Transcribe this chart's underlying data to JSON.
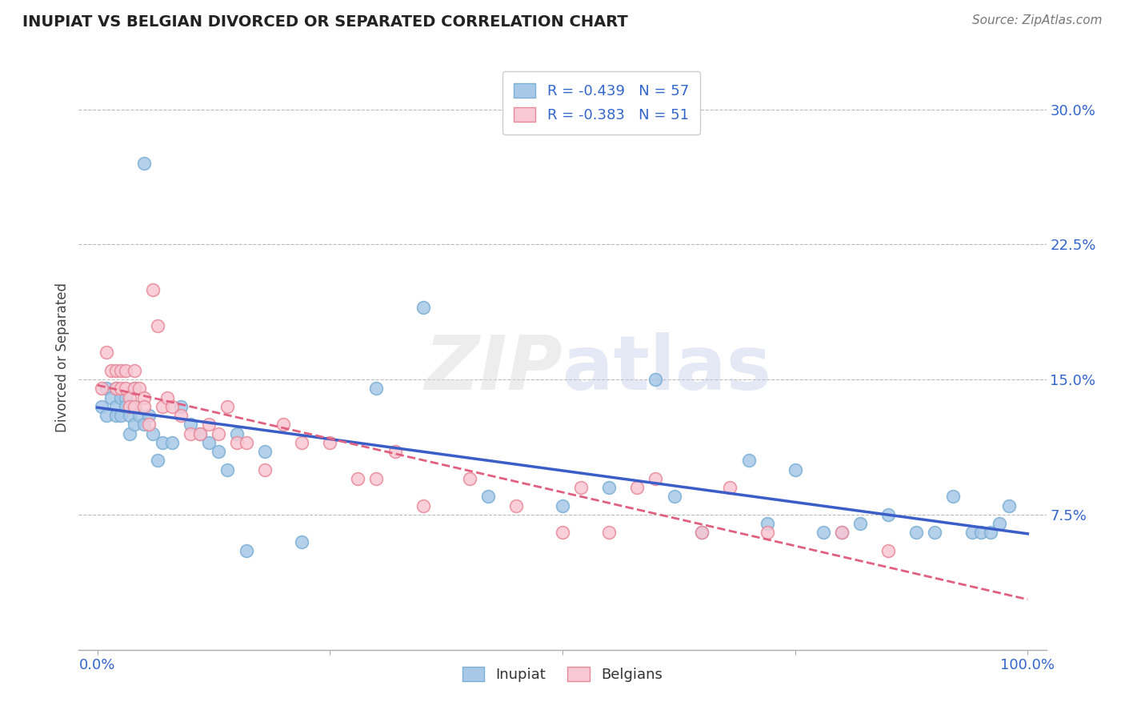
{
  "title": "INUPIAT VS BELGIAN DIVORCED OR SEPARATED CORRELATION CHART",
  "source": "Source: ZipAtlas.com",
  "ylabel": "Divorced or Separated",
  "xlim": [
    -0.02,
    1.02
  ],
  "ylim": [
    0.0,
    0.325
  ],
  "yticks": [
    0.075,
    0.15,
    0.225,
    0.3
  ],
  "ytick_labels": [
    "7.5%",
    "15.0%",
    "22.5%",
    "30.0%"
  ],
  "grid_color": "#bbbbbb",
  "background_color": "#ffffff",
  "inupiat_color": "#a8c8e8",
  "inupiat_edge_color": "#7bafd4",
  "belgian_color": "#f8c8d4",
  "belgian_edge_color": "#e88898",
  "inupiat_line_color": "#3a5dc8",
  "belgian_line_color": "#e06080",
  "inupiat_R": -0.439,
  "inupiat_N": 57,
  "belgian_R": -0.383,
  "belgian_N": 51,
  "legend_text_color": "#3366cc",
  "watermark": "ZIPatlas",
  "inupiat_x": [
    0.005,
    0.01,
    0.01,
    0.015,
    0.02,
    0.02,
    0.02,
    0.025,
    0.025,
    0.03,
    0.03,
    0.035,
    0.035,
    0.04,
    0.04,
    0.04,
    0.045,
    0.05,
    0.05,
    0.055,
    0.06,
    0.065,
    0.07,
    0.08,
    0.09,
    0.1,
    0.11,
    0.12,
    0.13,
    0.14,
    0.15,
    0.16,
    0.18,
    0.22,
    0.3,
    0.35,
    0.42,
    0.5,
    0.55,
    0.6,
    0.62,
    0.65,
    0.7,
    0.72,
    0.75,
    0.78,
    0.8,
    0.82,
    0.85,
    0.88,
    0.9,
    0.92,
    0.94,
    0.95,
    0.96,
    0.97,
    0.98
  ],
  "inupiat_y": [
    0.135,
    0.145,
    0.13,
    0.14,
    0.145,
    0.135,
    0.13,
    0.14,
    0.13,
    0.14,
    0.135,
    0.13,
    0.12,
    0.145,
    0.135,
    0.125,
    0.13,
    0.27,
    0.125,
    0.13,
    0.12,
    0.105,
    0.115,
    0.115,
    0.135,
    0.125,
    0.12,
    0.115,
    0.11,
    0.1,
    0.12,
    0.055,
    0.11,
    0.06,
    0.145,
    0.19,
    0.085,
    0.08,
    0.09,
    0.15,
    0.085,
    0.065,
    0.105,
    0.07,
    0.1,
    0.065,
    0.065,
    0.07,
    0.075,
    0.065,
    0.065,
    0.085,
    0.065,
    0.065,
    0.065,
    0.07,
    0.08
  ],
  "belgian_x": [
    0.005,
    0.01,
    0.015,
    0.02,
    0.02,
    0.025,
    0.025,
    0.03,
    0.03,
    0.035,
    0.035,
    0.04,
    0.04,
    0.04,
    0.045,
    0.05,
    0.05,
    0.055,
    0.06,
    0.065,
    0.07,
    0.075,
    0.08,
    0.09,
    0.1,
    0.11,
    0.12,
    0.13,
    0.14,
    0.15,
    0.16,
    0.18,
    0.2,
    0.22,
    0.25,
    0.28,
    0.3,
    0.32,
    0.35,
    0.4,
    0.45,
    0.5,
    0.52,
    0.55,
    0.58,
    0.6,
    0.65,
    0.68,
    0.72,
    0.8,
    0.85
  ],
  "belgian_y": [
    0.145,
    0.165,
    0.155,
    0.155,
    0.145,
    0.155,
    0.145,
    0.155,
    0.145,
    0.14,
    0.135,
    0.155,
    0.145,
    0.135,
    0.145,
    0.14,
    0.135,
    0.125,
    0.2,
    0.18,
    0.135,
    0.14,
    0.135,
    0.13,
    0.12,
    0.12,
    0.125,
    0.12,
    0.135,
    0.115,
    0.115,
    0.1,
    0.125,
    0.115,
    0.115,
    0.095,
    0.095,
    0.11,
    0.08,
    0.095,
    0.08,
    0.065,
    0.09,
    0.065,
    0.09,
    0.095,
    0.065,
    0.09,
    0.065,
    0.065,
    0.055
  ]
}
